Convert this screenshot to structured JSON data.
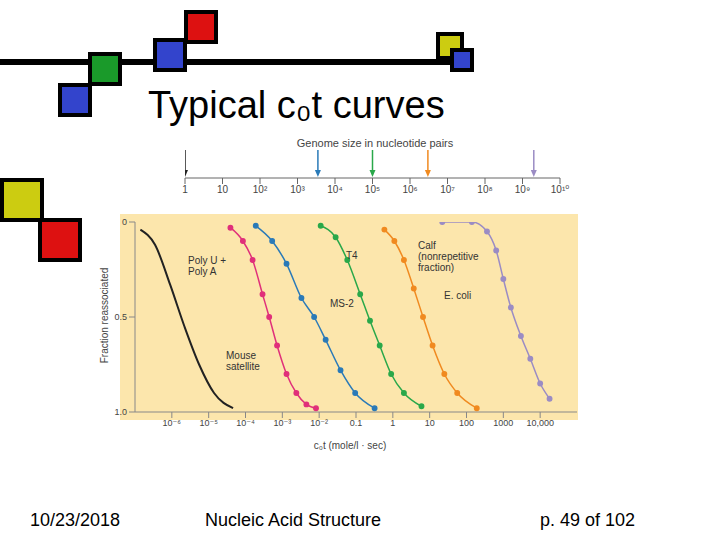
{
  "slide": {
    "title": "Typical c₀t curves",
    "footer": {
      "date": "10/23/2018",
      "center": "Nucleic Acid Structure",
      "page": "p. 49 of 102"
    }
  },
  "chart_data": {
    "type": "line",
    "x_label": "c₀t (mole/l · sec)",
    "y_label": "Fraction reassociated",
    "x2_label": "Genome size in nucleotide pairs",
    "log": "x",
    "grid": false,
    "xlim": [
      1e-07,
      100000.0
    ],
    "xticks": [
      {
        "value": 1e-06,
        "label": "10⁻⁶"
      },
      {
        "value": 1e-05,
        "label": "10⁻⁵"
      },
      {
        "value": 0.0001,
        "label": "10⁻⁴"
      },
      {
        "value": 0.001,
        "label": "10⁻³"
      },
      {
        "value": 0.01,
        "label": "10⁻²"
      },
      0.1,
      1,
      10,
      100,
      1000,
      {
        "value": 10000,
        "label": "10,000"
      }
    ],
    "ylim": [
      0,
      1
    ],
    "yticks": [
      0,
      0.5,
      {
        "value": 1,
        "label": "1.0"
      }
    ],
    "x2lim": [
      1,
      10000000000.0
    ],
    "x2ticks": [
      1,
      10,
      {
        "value": 100,
        "label": "10²"
      },
      {
        "value": 1000,
        "label": "10³"
      },
      {
        "value": 10000,
        "label": "10⁴"
      },
      {
        "value": 100000,
        "label": "10⁵"
      },
      {
        "value": 1000000,
        "label": "10⁶"
      },
      {
        "value": 10000000,
        "label": "10⁷"
      },
      {
        "value": 100000000,
        "label": "10⁸"
      },
      {
        "value": 1000000000,
        "label": "10⁹"
      },
      {
        "value": 10000000000,
        "label": "10¹⁰"
      }
    ],
    "series": [
      {
        "name": "Poly U + Poly A",
        "color": "#222222",
        "marker": "none",
        "genome_size": 1,
        "x": [
          1.4e-07,
          3.5e-07,
          9e-07,
          2.2e-06,
          5.5e-06,
          1.4e-05,
          4.6e-05
        ],
        "values": [
          0.04,
          0.12,
          0.33,
          0.55,
          0.75,
          0.9,
          0.98
        ]
      },
      {
        "name": "Mouse satellite",
        "color": "#e0307a",
        "marker": "circle",
        "x": [
          3.9e-05,
          8.5e-05,
          0.000156,
          0.00029,
          0.00044,
          0.00072,
          0.0013,
          0.0024,
          0.0045,
          0.0082
        ],
        "values": [
          0.03,
          0.1,
          0.2,
          0.38,
          0.5,
          0.65,
          0.8,
          0.9,
          0.96,
          0.98
        ]
      },
      {
        "name": "MS-2",
        "color": "#2a7ab8",
        "marker": "circle",
        "genome_size": 3500,
        "x": [
          0.00019,
          0.00053,
          0.0013,
          0.0033,
          0.0073,
          0.015,
          0.038,
          0.095,
          0.32
        ],
        "values": [
          0.02,
          0.1,
          0.22,
          0.4,
          0.5,
          0.62,
          0.78,
          0.9,
          0.98
        ]
      },
      {
        "name": "T4",
        "color": "#2aa84a",
        "marker": "circle",
        "genome_size": 100000,
        "x": [
          0.011,
          0.028,
          0.058,
          0.13,
          0.24,
          0.44,
          0.9,
          2.0,
          6.0
        ],
        "values": [
          0.02,
          0.08,
          0.2,
          0.38,
          0.52,
          0.65,
          0.8,
          0.9,
          0.97
        ]
      },
      {
        "name": "E. coli",
        "color": "#f08a20",
        "marker": "circle",
        "genome_size": 3000000,
        "x": [
          0.59,
          1.1,
          2.0,
          3.7,
          6.6,
          12,
          25,
          56,
          190
        ],
        "values": [
          0.04,
          0.1,
          0.2,
          0.35,
          0.5,
          0.65,
          0.8,
          0.9,
          0.98
        ]
      },
      {
        "name": "Calf (nonrepetitive fraction)",
        "color": "#9b8cc4",
        "marker": "circle",
        "genome_size": 2000000000,
        "x": [
          22,
          140,
          360,
          640,
          1000,
          1600,
          3000,
          5400,
          10000,
          18000
        ],
        "values": [
          0.0,
          0.0,
          0.05,
          0.15,
          0.3,
          0.45,
          0.6,
          0.72,
          0.85,
          0.93
        ]
      }
    ]
  }
}
